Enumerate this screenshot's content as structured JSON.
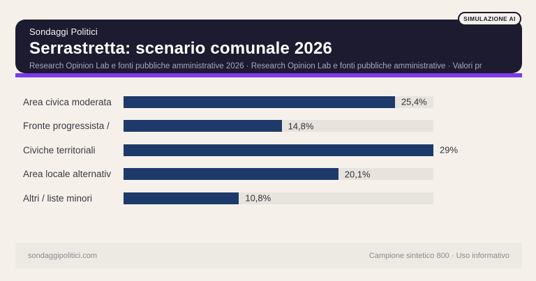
{
  "badge": {
    "label": "SIMULAZIONE AI"
  },
  "header": {
    "kicker": "Sondaggi Politici",
    "title": "Serrastretta: scenario comunale 2026",
    "subtitle": "Research Opinion Lab e fonti pubbliche amministrative 2026 · Research Opinion Lab e fonti pubbliche amministrative · Valori pr"
  },
  "chart_data": {
    "type": "bar",
    "orientation": "horizontal",
    "categories": [
      "Area civica moderata",
      "Fronte progressista /",
      "Civiche territoriali",
      "Area locale alternativ",
      "Altri / liste minori"
    ],
    "values": [
      25.4,
      14.8,
      29,
      20.1,
      10.8
    ],
    "value_labels": [
      "25,4%",
      "14,8%",
      "29%",
      "20,1%",
      "10,8%"
    ],
    "xlim": [
      0,
      29
    ],
    "grid": false,
    "legend": false,
    "bar_color": "#1e3a6b",
    "track_color": "#e7e3dd"
  },
  "footer": {
    "left": "sondaggipolitici.com",
    "right": "Campione sintetico 800 · Uso informativo"
  },
  "colors": {
    "page_background": "#f5f1ea",
    "card_background": "#1c1b2f",
    "accent_purple": "#7c3aed",
    "bar_navy": "#1e3a6b",
    "track_gray": "#e7e3dd",
    "footer_background": "#edeae4"
  }
}
